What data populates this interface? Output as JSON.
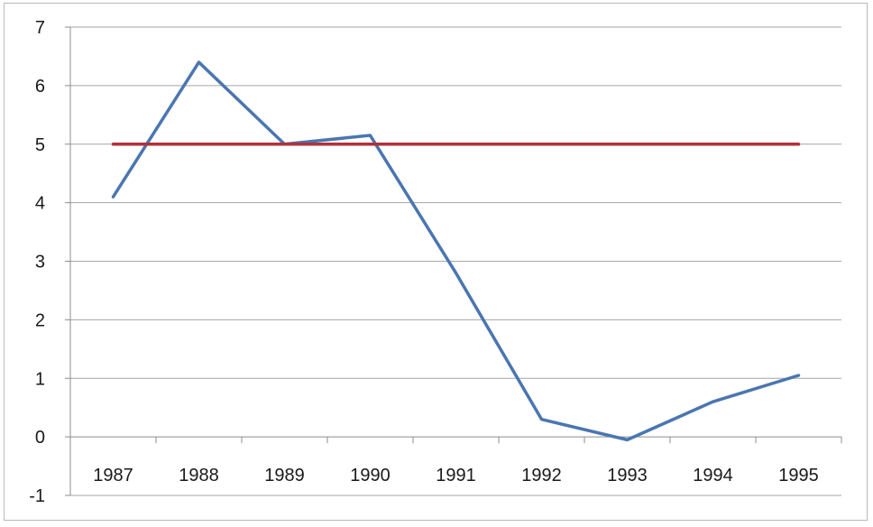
{
  "chart_data": {
    "type": "line",
    "title": "",
    "xlabel": "",
    "ylabel": "",
    "categories": [
      "1987",
      "1988",
      "1989",
      "1990",
      "1991",
      "1992",
      "1993",
      "1994",
      "1995"
    ],
    "ylim": [
      -1,
      7
    ],
    "yticks": [
      "-1",
      "0",
      "1",
      "2",
      "3",
      "4",
      "5",
      "6",
      "7"
    ],
    "grid": true,
    "legend": "none",
    "series": [
      {
        "values": [
          4.1,
          6.4,
          5.0,
          5.15,
          2.8,
          0.3,
          -0.05,
          0.6,
          1.05
        ],
        "color": "#4a76b0"
      },
      {
        "values": [
          5,
          5,
          5,
          5,
          5,
          5,
          5,
          5,
          5
        ],
        "color": "#b0303a"
      }
    ]
  }
}
